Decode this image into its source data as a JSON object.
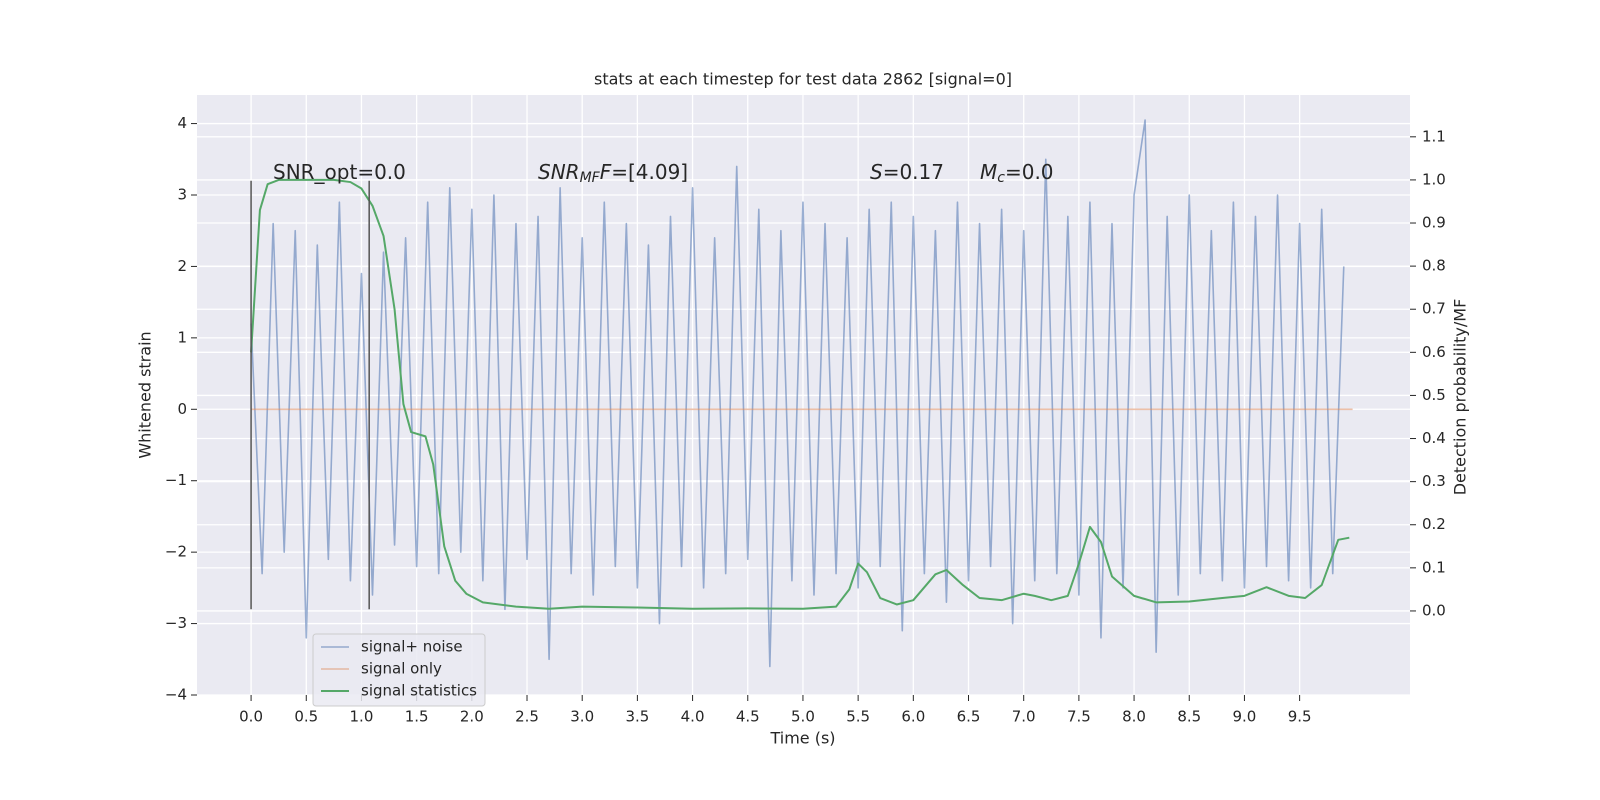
{
  "chart_data": {
    "type": "line",
    "title": "stats at each timestep for test data 2862 [signal=0]",
    "xlabel": "Time (s)",
    "ylabel": "Whitened strain",
    "y2label": "Detection probability/MF",
    "xlim": [
      -0.49,
      10.5
    ],
    "ylim": [
      -4.0,
      4.4
    ],
    "y2lim": [
      -0.195,
      1.197
    ],
    "xticks": [
      {
        "value": 0,
        "label": "0.0"
      },
      0.5,
      {
        "value": 1,
        "label": "1.0"
      },
      1.5,
      {
        "value": 2,
        "label": "2.0"
      },
      2.5,
      {
        "value": 3,
        "label": "3.0"
      },
      3.5,
      {
        "value": 4,
        "label": "4.0"
      },
      4.5,
      {
        "value": 5,
        "label": "5.0"
      },
      5.5,
      {
        "value": 6,
        "label": "6.0"
      },
      6.5,
      {
        "value": 7,
        "label": "7.0"
      },
      7.5,
      {
        "value": 8,
        "label": "8.0"
      },
      8.5,
      {
        "value": 9,
        "label": "9.0"
      },
      9.5
    ],
    "yticks": [
      {
        "value": -4,
        "label": "−4"
      },
      {
        "value": -3,
        "label": "−3"
      },
      {
        "value": -2,
        "label": "−2"
      },
      {
        "value": -1,
        "label": "−1"
      },
      0,
      1,
      2,
      3,
      4
    ],
    "y2ticks": [
      {
        "value": 0,
        "label": "0.0"
      },
      0.1,
      0.2,
      0.3,
      0.4,
      0.5,
      0.6,
      0.7,
      0.8,
      0.9,
      {
        "value": 1,
        "label": "1.0"
      },
      1.1
    ],
    "grid": true,
    "legend": "lower left",
    "series": [
      {
        "name": "signal+ noise",
        "color": "#4c72b0",
        "x": [
          0,
          0.1,
          0.2,
          0.3,
          0.4,
          0.5,
          0.6,
          0.7,
          0.8,
          0.9,
          1,
          1.1,
          1.2,
          1.3,
          1.4,
          1.5,
          1.6,
          1.7,
          1.8,
          1.9,
          2,
          2.1,
          2.2,
          2.3,
          2.4,
          2.5,
          2.6,
          2.7,
          2.8,
          2.9,
          3,
          3.1,
          3.2,
          3.3,
          3.4,
          3.5,
          3.6,
          3.7,
          3.8,
          3.9,
          4,
          4.1,
          4.2,
          4.3,
          4.4,
          4.5,
          4.6,
          4.7,
          4.8,
          4.9,
          5,
          5.1,
          5.2,
          5.3,
          5.4,
          5.5,
          5.6,
          5.7,
          5.8,
          5.9,
          6,
          6.1,
          6.2,
          6.3,
          6.4,
          6.5,
          6.6,
          6.7,
          6.8,
          6.9,
          7,
          7.1,
          7.2,
          7.3,
          7.4,
          7.5,
          7.6,
          7.7,
          7.8,
          7.9,
          8,
          8.1,
          8.2,
          8.3,
          8.4,
          8.5,
          8.6,
          8.7,
          8.8,
          8.9,
          9,
          9.1,
          9.2,
          9.3,
          9.4,
          9.5,
          9.6,
          9.7,
          9.8,
          9.9
        ],
        "values": [
          1.2,
          -2.3,
          2.6,
          -2.0,
          2.5,
          -3.2,
          2.3,
          -2.1,
          2.9,
          -2.4,
          1.9,
          -2.6,
          2.2,
          -1.9,
          2.4,
          -2.2,
          2.9,
          -2.3,
          3.1,
          -2.0,
          2.8,
          -2.4,
          3.0,
          -2.8,
          2.6,
          -2.1,
          2.7,
          -3.5,
          3.1,
          -2.3,
          2.4,
          -2.6,
          2.9,
          -2.2,
          2.6,
          -2.5,
          2.3,
          -3.0,
          2.7,
          -2.2,
          3.1,
          -2.5,
          2.4,
          -2.3,
          3.4,
          -2.1,
          2.8,
          -3.6,
          2.5,
          -2.4,
          2.9,
          -2.6,
          2.6,
          -2.3,
          2.4,
          -2.5,
          2.8,
          -2.2,
          2.9,
          -3.1,
          2.7,
          -2.3,
          2.5,
          -2.7,
          2.9,
          -2.4,
          2.6,
          -2.2,
          2.8,
          -3.0,
          2.5,
          -2.4,
          3.5,
          -2.3,
          2.7,
          -2.6,
          2.9,
          -3.2,
          2.6,
          -2.5,
          3.0,
          4.05,
          -3.4,
          2.7,
          -2.6,
          3.0,
          -2.3,
          2.5,
          -2.4,
          2.9,
          -2.5,
          2.7,
          -2.2,
          3.0,
          -2.4,
          2.6,
          -2.5,
          2.8,
          -2.3,
          2.0
        ]
      },
      {
        "name": "signal only",
        "color": "#dd8452",
        "x": [
          0,
          9.98
        ],
        "values": [
          0,
          0
        ]
      },
      {
        "name": "signal statistics",
        "color": "#55a868",
        "axis": "y2",
        "x": [
          0,
          0.08,
          0.15,
          0.25,
          0.5,
          0.75,
          0.9,
          1.0,
          1.1,
          1.2,
          1.3,
          1.38,
          1.45,
          1.58,
          1.65,
          1.75,
          1.85,
          1.95,
          2.1,
          2.4,
          2.7,
          3.0,
          3.5,
          4.0,
          4.5,
          5.0,
          5.3,
          5.42,
          5.5,
          5.58,
          5.7,
          5.85,
          6.0,
          6.2,
          6.3,
          6.45,
          6.6,
          6.8,
          7.0,
          7.1,
          7.25,
          7.4,
          7.5,
          7.6,
          7.7,
          7.8,
          8.0,
          8.2,
          8.5,
          8.8,
          9.0,
          9.2,
          9.4,
          9.55,
          9.7,
          9.85,
          9.95
        ],
        "values": [
          0.6,
          0.93,
          0.99,
          1.0,
          1.0,
          1.0,
          0.995,
          0.98,
          0.94,
          0.87,
          0.7,
          0.48,
          0.415,
          0.405,
          0.34,
          0.15,
          0.07,
          0.04,
          0.02,
          0.01,
          0.005,
          0.01,
          0.008,
          0.005,
          0.006,
          0.005,
          0.01,
          0.05,
          0.11,
          0.09,
          0.03,
          0.015,
          0.025,
          0.085,
          0.095,
          0.06,
          0.03,
          0.025,
          0.04,
          0.035,
          0.025,
          0.035,
          0.11,
          0.195,
          0.16,
          0.08,
          0.035,
          0.02,
          0.022,
          0.03,
          0.035,
          0.055,
          0.035,
          0.03,
          0.06,
          0.165,
          0.17
        ]
      }
    ],
    "vlines": {
      "x": [
        0,
        1.07
      ],
      "ymin": -2.8,
      "ymax": 3.2
    },
    "annotations": [
      [
        {
          "text": "SNR_opt=0.0"
        }
      ],
      [
        {
          "text": "SNR",
          "italic": true
        },
        {
          "text": "MF",
          "italic": true,
          "sub": true
        },
        {
          "text": "F",
          "italic": true
        },
        {
          "text": "=[4.09]"
        }
      ],
      [
        {
          "text": "S",
          "italic": true
        },
        {
          "text": "=0.17"
        }
      ],
      [
        {
          "text": "M",
          "italic": true
        },
        {
          "text": "c",
          "italic": true,
          "sub": true
        },
        {
          "text": "=0.0"
        }
      ]
    ]
  }
}
